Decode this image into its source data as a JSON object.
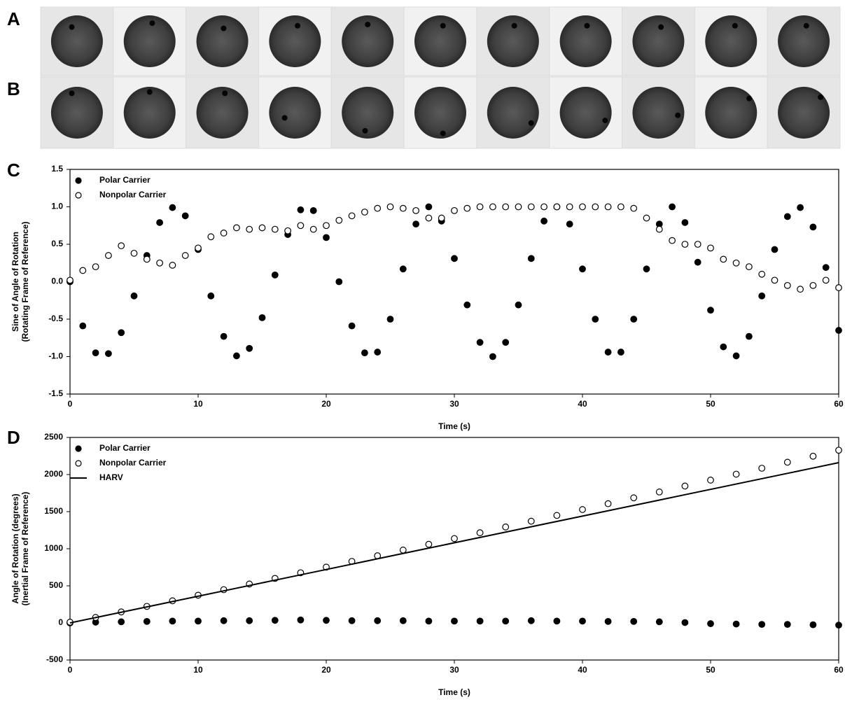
{
  "panel_labels": [
    "A",
    "B",
    "C",
    "D"
  ],
  "chart_data": [
    {
      "type": "scatter",
      "xlabel": "Time (s)",
      "ylabel": [
        "Sine of Angle of Rotation",
        "(Rotating Frame of Reference)"
      ],
      "x": [
        0,
        1,
        2,
        3,
        4,
        5,
        6,
        7,
        8,
        9,
        10,
        11,
        12,
        13,
        14,
        15,
        16,
        17,
        18,
        19,
        20,
        21,
        22,
        23,
        24,
        25,
        26,
        27,
        28,
        29,
        30,
        31,
        32,
        33,
        34,
        35,
        36,
        37,
        38,
        39,
        40,
        41,
        42,
        43,
        44,
        45,
        46,
        47,
        48,
        49,
        50,
        51,
        52,
        53,
        54,
        55,
        56,
        57,
        58,
        59,
        60
      ],
      "series": [
        {
          "name": "Polar Carrier",
          "color": "#000000",
          "marker": "filled",
          "values": [
            0,
            -0.59,
            -0.95,
            -0.96,
            -0.68,
            -0.19,
            0.35,
            0.79,
            0.99,
            0.88,
            0.43,
            -0.19,
            -0.73,
            -0.99,
            -0.89,
            -0.48,
            0.09,
            0.63,
            0.96,
            0.95,
            0.59,
            0,
            -0.59,
            -0.95,
            -0.94,
            -0.5,
            0.17,
            0.77,
            1,
            0.81,
            0.31,
            -0.31,
            -0.81,
            -1,
            -0.81,
            -0.31,
            0.31,
            0.81,
            1,
            0.77,
            0.17,
            -0.5,
            -0.94,
            -0.94,
            -0.5,
            0.17,
            0.77,
            1,
            0.79,
            0.26,
            -0.38,
            -0.87,
            -0.99,
            -0.73,
            -0.19,
            0.43,
            0.87,
            0.99,
            0.73,
            0.19,
            -0.65
          ]
        },
        {
          "name": "Nonpolar Carrier",
          "color": "#000000",
          "marker": "open",
          "values": [
            0.02,
            0.15,
            0.2,
            0.35,
            0.48,
            0.38,
            0.3,
            0.25,
            0.22,
            0.35,
            0.45,
            0.6,
            0.65,
            0.72,
            0.7,
            0.72,
            0.7,
            0.68,
            0.75,
            0.7,
            0.75,
            0.82,
            0.88,
            0.93,
            0.98,
            1,
            0.98,
            0.95,
            0.85,
            0.85,
            0.95,
            0.98,
            1,
            1,
            1,
            1,
            1,
            1,
            1,
            1,
            1,
            1,
            1,
            1,
            0.98,
            0.85,
            0.7,
            0.55,
            0.5,
            0.5,
            0.45,
            0.3,
            0.25,
            0.2,
            0.1,
            0.02,
            -0.05,
            -0.1,
            -0.05,
            0.02,
            -0.08
          ]
        }
      ],
      "xlim": [
        0,
        60
      ],
      "xticks": [
        0,
        10,
        20,
        30,
        40,
        50,
        60
      ],
      "ylim": [
        -1.5,
        1.5
      ],
      "yticks": [
        -1.5,
        {
          "value": -1,
          "label": "-1.0"
        },
        -0.5,
        {
          "value": 0,
          "label": "0.0"
        },
        0.5,
        {
          "value": 1,
          "label": "1.0"
        },
        1.5
      ],
      "legend": "upper left"
    },
    {
      "type": "scatter",
      "xlabel": "Time (s)",
      "ylabel": [
        "Angle of Rotation (degrees)",
        "(Inertial Frame of Reference)"
      ],
      "x": [
        0,
        2,
        4,
        6,
        8,
        10,
        12,
        14,
        16,
        18,
        20,
        22,
        24,
        26,
        28,
        30,
        32,
        34,
        36,
        38,
        40,
        42,
        44,
        46,
        48,
        50,
        52,
        54,
        56,
        58,
        60
      ],
      "series": [
        {
          "name": "Polar Carrier",
          "color": "#000000",
          "marker": "filled",
          "values": [
            0,
            10,
            15,
            20,
            25,
            25,
            30,
            30,
            35,
            40,
            35,
            30,
            30,
            30,
            25,
            25,
            25,
            25,
            30,
            25,
            25,
            20,
            20,
            15,
            5,
            -10,
            -15,
            -20,
            -20,
            -25,
            -30
          ]
        },
        {
          "name": "Nonpolar Carrier",
          "color": "#000000",
          "marker": "open",
          "values": [
            10,
            74,
            148,
            223,
            298,
            373,
            448,
            524,
            600,
            676,
            752,
            829,
            905,
            982,
            1060,
            1137,
            1215,
            1293,
            1371,
            1449,
            1528,
            1607,
            1686,
            1765,
            1845,
            1925,
            2005,
            2085,
            2166,
            2247,
            2328
          ]
        },
        {
          "name": "HARV",
          "color": "#000000",
          "marker": "line",
          "values": [
            0,
            72,
            144,
            216,
            288,
            360,
            432,
            504,
            576,
            648,
            720,
            792,
            864,
            936,
            1008,
            1080,
            1152,
            1224,
            1296,
            1368,
            1440,
            1512,
            1584,
            1656,
            1728,
            1800,
            1872,
            1944,
            2016,
            2088,
            2160
          ]
        }
      ],
      "xlim": [
        0,
        60
      ],
      "xticks": [
        0,
        10,
        20,
        30,
        40,
        50,
        60
      ],
      "ylim": [
        -500,
        2500
      ],
      "yticks": [
        -500,
        0,
        500,
        1000,
        1500,
        2000,
        2500
      ],
      "legend": "upper left"
    }
  ]
}
